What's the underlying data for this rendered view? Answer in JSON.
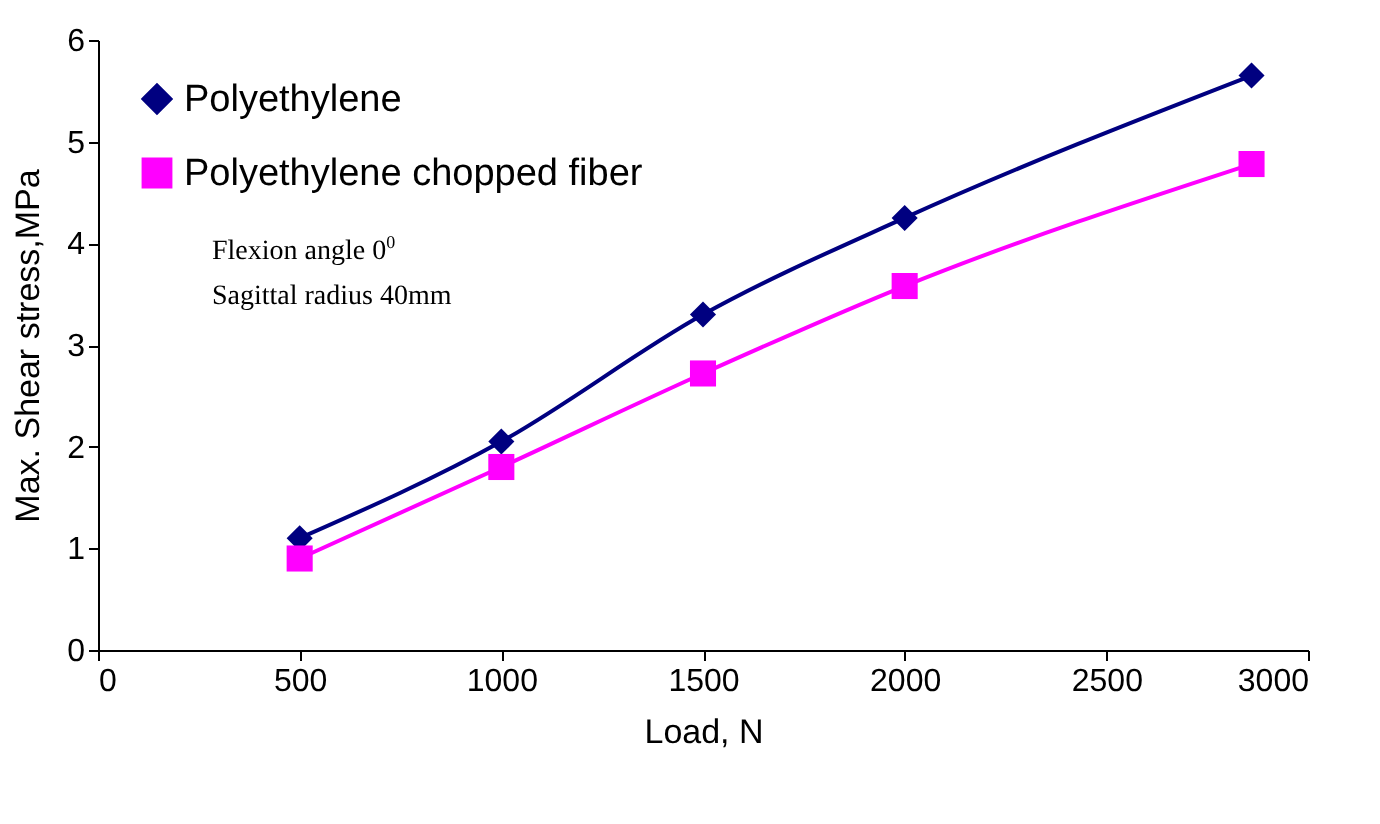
{
  "chart_data": {
    "type": "line",
    "xlabel": "Load, N",
    "ylabel": "Max. Shear stress,MPa",
    "x": [
      500,
      1000,
      1500,
      2000,
      2860
    ],
    "series": [
      {
        "name": "Polyethylene",
        "color": "#000080",
        "marker": "diamond",
        "values": [
          1.1,
          2.05,
          3.3,
          4.25,
          5.65
        ]
      },
      {
        "name": "Polyethylene chopped fiber",
        "color": "#ff00ff",
        "marker": "square",
        "values": [
          0.9,
          1.8,
          2.72,
          3.58,
          4.78
        ]
      }
    ],
    "xlim": [
      0,
      3000
    ],
    "xticks": [
      0,
      500,
      1000,
      1500,
      2000,
      2500,
      3000
    ],
    "ylim": [
      0,
      6
    ],
    "yticks": [
      0,
      1,
      2,
      3,
      4,
      5,
      6
    ],
    "grid": false,
    "legend": "top left",
    "line_style": "solid",
    "annotations": [
      "Flexion angle 0$^{0}$",
      "Sagittal radius 40mm"
    ]
  }
}
